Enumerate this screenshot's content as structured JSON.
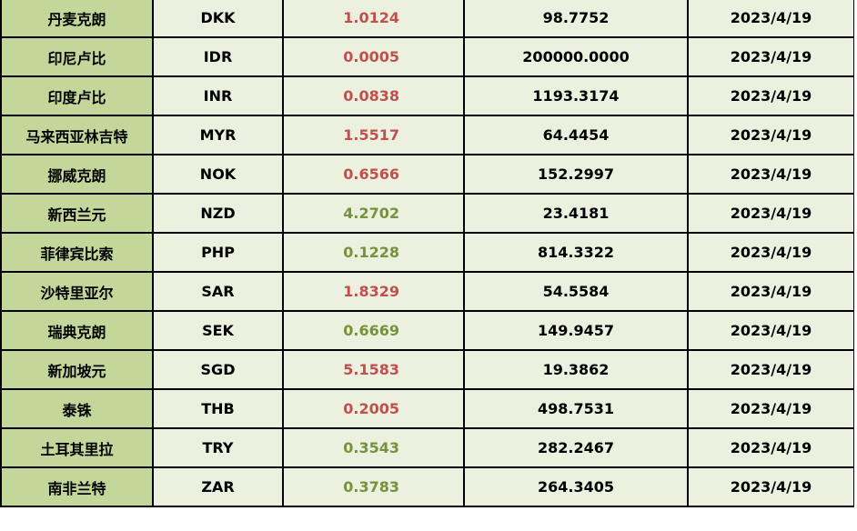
{
  "colors": {
    "name_bg": "#c4d79b",
    "cell_bg": "#ebf1de",
    "red": "#c0504d",
    "green": "#76923c"
  },
  "rows": [
    {
      "name": "丹麦克朗",
      "code": "DKK",
      "rate": "1.0124",
      "rate_color": "red",
      "amount": "98.7752",
      "date": "2023/4/19"
    },
    {
      "name": "印尼卢比",
      "code": "IDR",
      "rate": "0.0005",
      "rate_color": "red",
      "amount": "200000.0000",
      "date": "2023/4/19"
    },
    {
      "name": "印度卢比",
      "code": "INR",
      "rate": "0.0838",
      "rate_color": "red",
      "amount": "1193.3174",
      "date": "2023/4/19"
    },
    {
      "name": "马来西亚林吉特",
      "code": "MYR",
      "rate": "1.5517",
      "rate_color": "red",
      "amount": "64.4454",
      "date": "2023/4/19"
    },
    {
      "name": "挪威克朗",
      "code": "NOK",
      "rate": "0.6566",
      "rate_color": "red",
      "amount": "152.2997",
      "date": "2023/4/19"
    },
    {
      "name": "新西兰元",
      "code": "NZD",
      "rate": "4.2702",
      "rate_color": "green",
      "amount": "23.4181",
      "date": "2023/4/19"
    },
    {
      "name": "菲律宾比索",
      "code": "PHP",
      "rate": "0.1228",
      "rate_color": "green",
      "amount": "814.3322",
      "date": "2023/4/19"
    },
    {
      "name": "沙特里亚尔",
      "code": "SAR",
      "rate": "1.8329",
      "rate_color": "red",
      "amount": "54.5584",
      "date": "2023/4/19"
    },
    {
      "name": "瑞典克朗",
      "code": "SEK",
      "rate": "0.6669",
      "rate_color": "green",
      "amount": "149.9457",
      "date": "2023/4/19"
    },
    {
      "name": "新加坡元",
      "code": "SGD",
      "rate": "5.1583",
      "rate_color": "red",
      "amount": "19.3862",
      "date": "2023/4/19"
    },
    {
      "name": "泰铢",
      "code": "THB",
      "rate": "0.2005",
      "rate_color": "red",
      "amount": "498.7531",
      "date": "2023/4/19"
    },
    {
      "name": "土耳其里拉",
      "code": "TRY",
      "rate": "0.3543",
      "rate_color": "green",
      "amount": "282.2467",
      "date": "2023/4/19"
    },
    {
      "name": "南非兰特",
      "code": "ZAR",
      "rate": "0.3783",
      "rate_color": "green",
      "amount": "264.3405",
      "date": "2023/4/19"
    }
  ]
}
